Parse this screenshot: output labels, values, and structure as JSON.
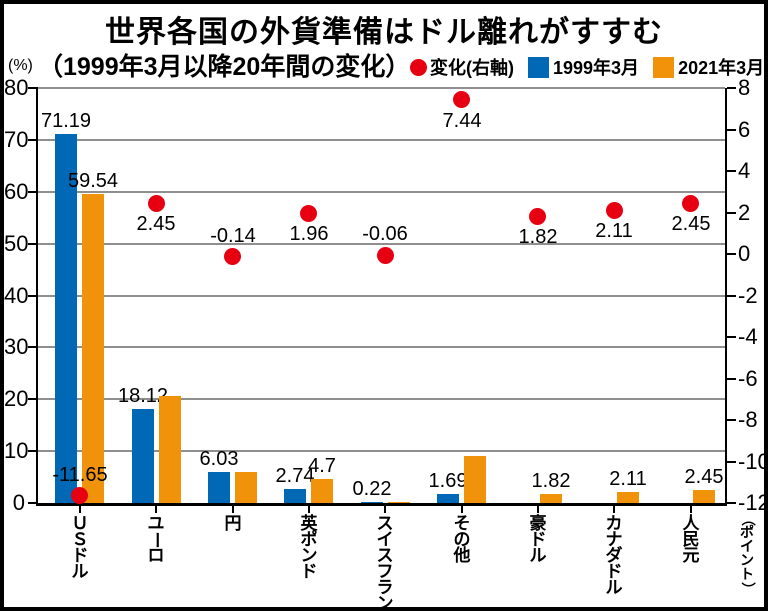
{
  "title": "世界各国の外貨準備はドル離れがすすむ",
  "subtitle": "（1999年3月以降20年間の変化）",
  "legend": {
    "change": "変化(右軸)",
    "y1999": "1999年3月",
    "y2021": "2021年3月"
  },
  "axes": {
    "left_unit": "(%)",
    "right_unit": "（ポイント）",
    "left_ticks": [
      80,
      70,
      60,
      50,
      40,
      30,
      20,
      10,
      0
    ],
    "right_ticks": [
      8,
      6,
      4,
      2,
      0,
      -2,
      -4,
      -6,
      -8,
      -10,
      -12
    ],
    "left_range": [
      0,
      80
    ],
    "right_range": [
      -12,
      8
    ]
  },
  "colors": {
    "bar_1999": "#0068b4",
    "bar_2021": "#f0930a",
    "change_dot": "#e60012",
    "gridline": "#8f8f8f",
    "axis": "#000000"
  },
  "chart_data": {
    "type": "bar",
    "title": "世界各国の外貨準備はドル離れがすすむ",
    "subtitle": "（1999年3月以降20年間の変化）",
    "categories": [
      "ＵＳドル",
      "ユーロ",
      "円",
      "英ポンド",
      "スイスフラン",
      "その他",
      "豪ドル",
      "カナダドル",
      "人民元"
    ],
    "series": [
      {
        "name": "1999年3月",
        "type": "bar",
        "axis": "left",
        "values": [
          71.19,
          18.12,
          6.03,
          2.74,
          0.22,
          1.69,
          null,
          null,
          null
        ],
        "labels": [
          "71.19",
          "18.12",
          "6.03",
          "2.74",
          "0.22",
          "1.69",
          "",
          "",
          ""
        ]
      },
      {
        "name": "2021年3月",
        "type": "bar",
        "axis": "left",
        "values": [
          59.54,
          20.57,
          5.89,
          4.7,
          0.16,
          9.13,
          1.82,
          2.11,
          2.45
        ],
        "labels": [
          "59.54",
          "",
          "",
          "4.7",
          "",
          "",
          "1.82",
          "2.11",
          "2.45"
        ]
      },
      {
        "name": "変化(右軸)",
        "type": "scatter",
        "axis": "right",
        "values": [
          -11.65,
          2.45,
          -0.14,
          1.96,
          -0.06,
          7.44,
          1.82,
          2.11,
          2.45
        ],
        "labels": [
          "-11.65",
          "2.45",
          "-0.14",
          "1.96",
          "-0.06",
          "7.44",
          "1.82",
          "2.11",
          "2.45"
        ],
        "label_side": [
          "above",
          "below",
          "above",
          "below",
          "above",
          "below",
          "below",
          "below",
          "below"
        ]
      }
    ],
    "ylabel_left": "(%)",
    "ylabel_right": "（ポイント）",
    "ylim_left": [
      0,
      80
    ],
    "ylim_right": [
      -12,
      8
    ],
    "grid": true,
    "legend_position": "top"
  }
}
